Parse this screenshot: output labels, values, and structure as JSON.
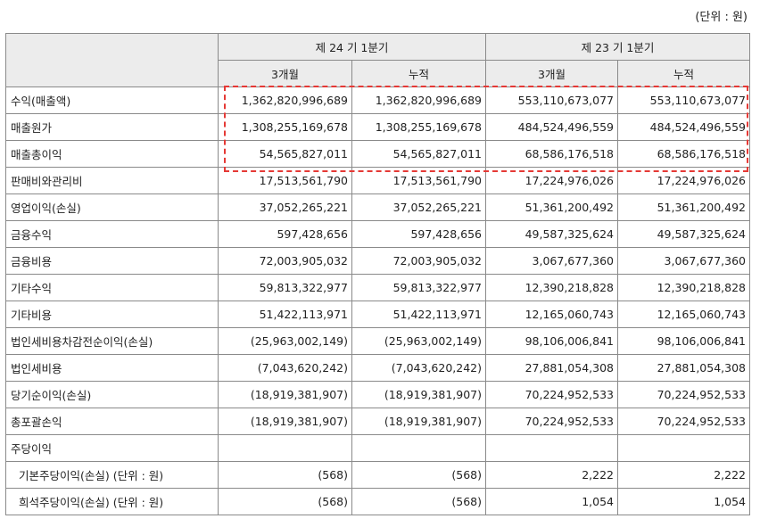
{
  "unit_label": "(단위 : 원)",
  "header": {
    "period_current": "제 24 기 1분기",
    "period_prior": "제 23 기 1분기",
    "sub": [
      "3개월",
      "누적",
      "3개월",
      "누적"
    ]
  },
  "rows": [
    {
      "label": "수익(매출액)",
      "values": [
        "1,362,820,996,689",
        "1,362,820,996,689",
        "553,110,673,077",
        "553,110,673,077"
      ]
    },
    {
      "label": "매출원가",
      "values": [
        "1,308,255,169,678",
        "1,308,255,169,678",
        "484,524,496,559",
        "484,524,496,559"
      ]
    },
    {
      "label": "매출총이익",
      "values": [
        "54,565,827,011",
        "54,565,827,011",
        "68,586,176,518",
        "68,586,176,518"
      ]
    },
    {
      "label": "판매비와관리비",
      "values": [
        "17,513,561,790",
        "17,513,561,790",
        "17,224,976,026",
        "17,224,976,026"
      ]
    },
    {
      "label": "영업이익(손실)",
      "values": [
        "37,052,265,221",
        "37,052,265,221",
        "51,361,200,492",
        "51,361,200,492"
      ]
    },
    {
      "label": "금융수익",
      "values": [
        "597,428,656",
        "597,428,656",
        "49,587,325,624",
        "49,587,325,624"
      ]
    },
    {
      "label": "금융비용",
      "values": [
        "72,003,905,032",
        "72,003,905,032",
        "3,067,677,360",
        "3,067,677,360"
      ]
    },
    {
      "label": "기타수익",
      "values": [
        "59,813,322,977",
        "59,813,322,977",
        "12,390,218,828",
        "12,390,218,828"
      ]
    },
    {
      "label": "기타비용",
      "values": [
        "51,422,113,971",
        "51,422,113,971",
        "12,165,060,743",
        "12,165,060,743"
      ]
    },
    {
      "label": "법인세비용차감전순이익(손실)",
      "values": [
        "(25,963,002,149)",
        "(25,963,002,149)",
        "98,106,006,841",
        "98,106,006,841"
      ]
    },
    {
      "label": "법인세비용",
      "values": [
        "(7,043,620,242)",
        "(7,043,620,242)",
        "27,881,054,308",
        "27,881,054,308"
      ]
    },
    {
      "label": "당기순이익(손실)",
      "values": [
        "(18,919,381,907)",
        "(18,919,381,907)",
        "70,224,952,533",
        "70,224,952,533"
      ]
    },
    {
      "label": "총포괄손익",
      "values": [
        "(18,919,381,907)",
        "(18,919,381,907)",
        "70,224,952,533",
        "70,224,952,533"
      ]
    },
    {
      "label": "주당이익",
      "values": [
        "",
        "",
        "",
        ""
      ]
    },
    {
      "label": "기본주당이익(손실) (단위 : 원)",
      "values": [
        "(568)",
        "(568)",
        "2,222",
        "2,222"
      ],
      "indent": true
    },
    {
      "label": "희석주당이익(손실) (단위 : 원)",
      "values": [
        "(568)",
        "(568)",
        "1,054",
        "1,054"
      ],
      "indent": true
    }
  ]
}
